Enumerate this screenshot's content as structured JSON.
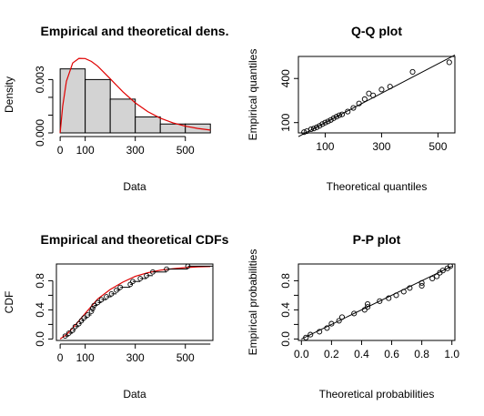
{
  "chart_data": [
    {
      "id": "density",
      "type": "histogram",
      "title": "Empirical and theoretical dens.",
      "xlabel": "Data",
      "ylabel": "Density",
      "xlim": [
        -15,
        610
      ],
      "ylim": [
        0,
        0.0043
      ],
      "xticks": [
        0,
        100,
        300,
        500
      ],
      "xtick_labels": [
        "0",
        "100",
        "300",
        "500"
      ],
      "yticks": [
        0.0,
        0.001,
        0.002,
        0.003
      ],
      "ytick_labels": [
        "0.000",
        "",
        "",
        "0.003"
      ],
      "bins": [
        {
          "from": 0,
          "to": 100,
          "value": 0.0036
        },
        {
          "from": 100,
          "to": 200,
          "value": 0.003
        },
        {
          "from": 200,
          "to": 300,
          "value": 0.0019
        },
        {
          "from": 300,
          "to": 400,
          "value": 0.0009
        },
        {
          "from": 400,
          "to": 500,
          "value": 0.0005
        },
        {
          "from": 500,
          "to": 600,
          "value": 0.0005
        }
      ],
      "curve": {
        "x": [
          0,
          10,
          25,
          50,
          75,
          100,
          125,
          150,
          200,
          250,
          300,
          350,
          400,
          450,
          500,
          550,
          600
        ],
        "y": [
          0,
          0.0015,
          0.0029,
          0.00393,
          0.00419,
          0.00418,
          0.00402,
          0.00375,
          0.00304,
          0.00232,
          0.00169,
          0.0012,
          0.00083,
          0.00057,
          0.00038,
          0.00025,
          0.00016
        ]
      },
      "hist_color": "#d3d3d3",
      "curve_color": "#e00000"
    },
    {
      "id": "qq",
      "type": "scatter",
      "title": "Q-Q plot",
      "xlabel": "Theoretical quantiles",
      "ylabel": "Empirical quantiles",
      "xlim": [
        5,
        560
      ],
      "ylim": [
        30,
        550
      ],
      "xticks": [
        100,
        300,
        500
      ],
      "xtick_labels": [
        "100",
        "300",
        "500"
      ],
      "yticks": [
        100,
        400
      ],
      "ytick_labels": [
        "100",
        "400"
      ],
      "reference_line": [
        [
          5,
          5
        ],
        [
          560,
          560
        ]
      ],
      "points": [
        [
          25,
          35
        ],
        [
          35,
          42
        ],
        [
          50,
          55
        ],
        [
          60,
          60
        ],
        [
          70,
          68
        ],
        [
          80,
          78
        ],
        [
          90,
          90
        ],
        [
          100,
          100
        ],
        [
          110,
          108
        ],
        [
          120,
          118
        ],
        [
          130,
          130
        ],
        [
          140,
          140
        ],
        [
          150,
          150
        ],
        [
          160,
          156
        ],
        [
          180,
          175
        ],
        [
          200,
          200
        ],
        [
          220,
          230
        ],
        [
          240,
          260
        ],
        [
          255,
          298
        ],
        [
          270,
          285
        ],
        [
          300,
          325
        ],
        [
          330,
          345
        ],
        [
          410,
          445
        ],
        [
          540,
          510
        ]
      ]
    },
    {
      "id": "cdf",
      "type": "step",
      "title": "Empirical and theoretical CDFs",
      "xlabel": "Data",
      "ylabel": "CDF",
      "xlim": [
        -15,
        610
      ],
      "ylim": [
        -0.02,
        1.03
      ],
      "xticks": [
        0,
        100,
        300,
        500
      ],
      "xtick_labels": [
        "0",
        "100",
        "300",
        "500"
      ],
      "yticks": [
        0.0,
        0.2,
        0.4,
        0.6,
        0.8
      ],
      "ytick_labels": [
        "0.0",
        "",
        "0.4",
        "",
        "0.8"
      ],
      "curve": {
        "x": [
          0,
          25,
          50,
          75,
          100,
          125,
          150,
          200,
          250,
          300,
          350,
          400,
          450,
          500,
          550,
          600
        ],
        "y": [
          0,
          0.06,
          0.15,
          0.25,
          0.35,
          0.45,
          0.55,
          0.68,
          0.78,
          0.86,
          0.91,
          0.945,
          0.965,
          0.98,
          0.99,
          0.995
        ]
      },
      "ecdf": [
        [
          20,
          0.04
        ],
        [
          35,
          0.08
        ],
        [
          50,
          0.12
        ],
        [
          60,
          0.17
        ],
        [
          75,
          0.21
        ],
        [
          85,
          0.25
        ],
        [
          95,
          0.29
        ],
        [
          110,
          0.33
        ],
        [
          125,
          0.38
        ],
        [
          130,
          0.42
        ],
        [
          135,
          0.46
        ],
        [
          150,
          0.5
        ],
        [
          165,
          0.54
        ],
        [
          185,
          0.58
        ],
        [
          205,
          0.62
        ],
        [
          225,
          0.67
        ],
        [
          240,
          0.71
        ],
        [
          280,
          0.75
        ],
        [
          290,
          0.79
        ],
        [
          320,
          0.83
        ],
        [
          345,
          0.87
        ],
        [
          370,
          0.92
        ],
        [
          425,
          0.96
        ],
        [
          510,
          1.0
        ]
      ],
      "curve_color": "#e00000"
    },
    {
      "id": "pp",
      "type": "scatter",
      "title": "P-P plot",
      "xlabel": "Theoretical probabilities",
      "ylabel": "Empirical probabilities",
      "xlim": [
        -0.02,
        1.02
      ],
      "ylim": [
        -0.02,
        1.03
      ],
      "xticks": [
        0.0,
        0.2,
        0.4,
        0.6,
        0.8,
        1.0
      ],
      "xtick_labels": [
        "0.0",
        "0.2",
        "0.4",
        "0.6",
        "0.8",
        "1.0"
      ],
      "yticks": [
        0.0,
        0.2,
        0.4,
        0.6,
        0.8
      ],
      "ytick_labels": [
        "0.0",
        "",
        "0.4",
        "",
        "0.8"
      ],
      "reference_line": [
        [
          0,
          0
        ],
        [
          1,
          1
        ]
      ],
      "points": [
        [
          0.03,
          0.02
        ],
        [
          0.06,
          0.06
        ],
        [
          0.12,
          0.1
        ],
        [
          0.17,
          0.15
        ],
        [
          0.2,
          0.21
        ],
        [
          0.25,
          0.25
        ],
        [
          0.27,
          0.3
        ],
        [
          0.35,
          0.35
        ],
        [
          0.42,
          0.4
        ],
        [
          0.44,
          0.44
        ],
        [
          0.44,
          0.48
        ],
        [
          0.52,
          0.52
        ],
        [
          0.58,
          0.56
        ],
        [
          0.63,
          0.6
        ],
        [
          0.68,
          0.65
        ],
        [
          0.72,
          0.7
        ],
        [
          0.8,
          0.73
        ],
        [
          0.8,
          0.77
        ],
        [
          0.87,
          0.83
        ],
        [
          0.9,
          0.86
        ],
        [
          0.92,
          0.91
        ],
        [
          0.94,
          0.94
        ],
        [
          0.97,
          0.97
        ],
        [
          0.99,
          1.0
        ]
      ]
    }
  ]
}
